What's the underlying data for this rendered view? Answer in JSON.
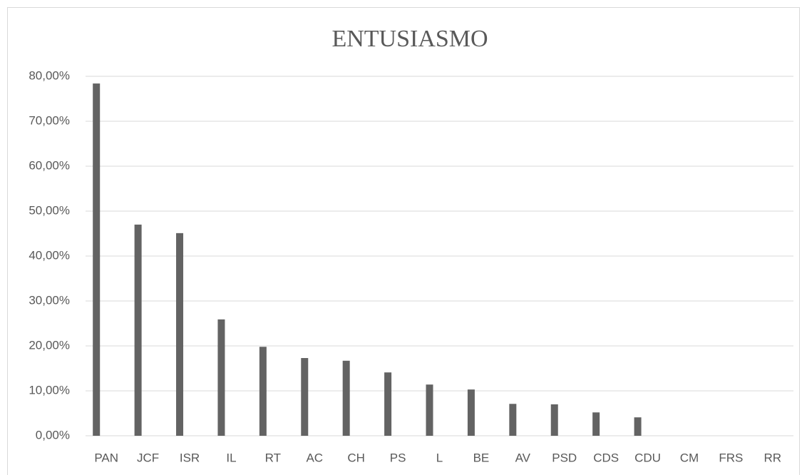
{
  "chart_data": {
    "type": "bar",
    "title": "ENTUSIASMO",
    "categories": [
      "PAN",
      "JCF",
      "ISR",
      "IL",
      "RT",
      "AC",
      "CH",
      "PS",
      "L",
      "BE",
      "AV",
      "PSD",
      "CDS",
      "CDU",
      "CM",
      "FRS",
      "RR"
    ],
    "values": [
      78.4,
      47.0,
      45.1,
      25.9,
      19.8,
      17.3,
      16.7,
      14.1,
      11.4,
      10.3,
      7.1,
      7.0,
      5.2,
      4.1,
      0,
      0,
      0
    ],
    "color": "#636363",
    "ylim": [
      0,
      80
    ],
    "yticks": [
      {
        "value": 0,
        "label": "0,00%"
      },
      {
        "value": 10,
        "label": "10,00%"
      },
      {
        "value": 20,
        "label": "20,00%"
      },
      {
        "value": 30,
        "label": "30,00%"
      },
      {
        "value": 40,
        "label": "40,00%"
      },
      {
        "value": 50,
        "label": "50,00%"
      },
      {
        "value": 60,
        "label": "60,00%"
      },
      {
        "value": 70,
        "label": "70,00%"
      },
      {
        "value": 80,
        "label": "80,00%"
      }
    ],
    "grid": true
  }
}
